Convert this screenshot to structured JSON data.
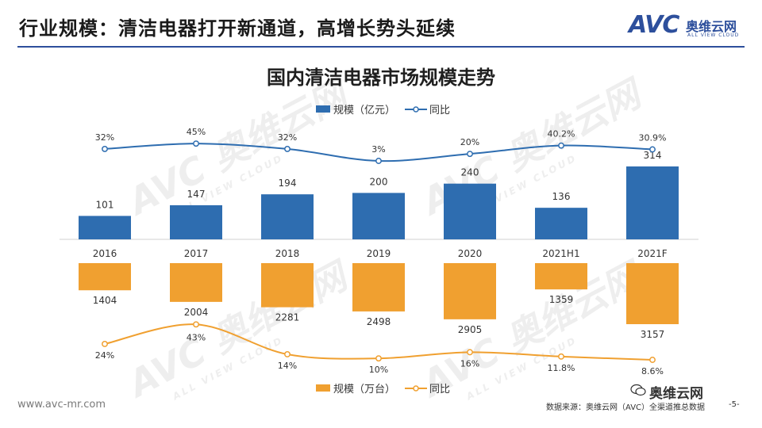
{
  "header": {
    "title": "行业规模：清洁电器打开新通道，高增长势头延续"
  },
  "logo": {
    "brand": "AVC",
    "cn": "奥维云网",
    "en": "ALL VIEW CLOUD"
  },
  "watermark": {
    "brand": "AVC",
    "cn": "奥维云网",
    "en": "ALL VIEW CLOUD"
  },
  "colors": {
    "blue": "#2e6db0",
    "orange": "#f0a030",
    "header_rule": "#2d4f9c"
  },
  "chart_data": {
    "type": "bar",
    "title": "国内清洁电器市场规模走势",
    "categories": [
      "2016",
      "2017",
      "2018",
      "2019",
      "2020",
      "2021H1",
      "2021F"
    ],
    "series": [
      {
        "name": "规模（亿元）",
        "kind": "bar",
        "color": "#2e6db0",
        "values": [
          101,
          147,
          194,
          200,
          240,
          136,
          314
        ],
        "labels": [
          "101",
          "147",
          "194",
          "200",
          "240",
          "136",
          "314"
        ]
      },
      {
        "name": "同比",
        "kind": "line",
        "color": "#2e6db0",
        "values": [
          32,
          45,
          32,
          3,
          20,
          40.2,
          30.9
        ],
        "labels": [
          "32%",
          "45%",
          "32%",
          "3%",
          "20%",
          "40.2%",
          "30.9%"
        ]
      },
      {
        "name": "规模（万台）",
        "kind": "bar",
        "color": "#f0a030",
        "values": [
          1404,
          2004,
          2281,
          2498,
          2905,
          1359,
          3157
        ],
        "labels": [
          "1404",
          "2004",
          "2281",
          "2498",
          "2905",
          "1359",
          "3157"
        ]
      },
      {
        "name": "同比",
        "kind": "line",
        "color": "#f0a030",
        "values": [
          24,
          43,
          14,
          10,
          16,
          11.8,
          8.6
        ],
        "labels": [
          "24%",
          "43%",
          "14%",
          "10%",
          "16%",
          "11.8%",
          "8.6%"
        ]
      }
    ],
    "legend_top": [
      "规模（亿元）",
      "同比"
    ],
    "legend_bottom": [
      "规模（万台）",
      "同比"
    ]
  },
  "footer": {
    "url": "www.avc-mr.com",
    "source": "数据来源：奥维云网（AVC）全渠道推总数据",
    "page": "-5-",
    "wechat": "奥维云网"
  }
}
